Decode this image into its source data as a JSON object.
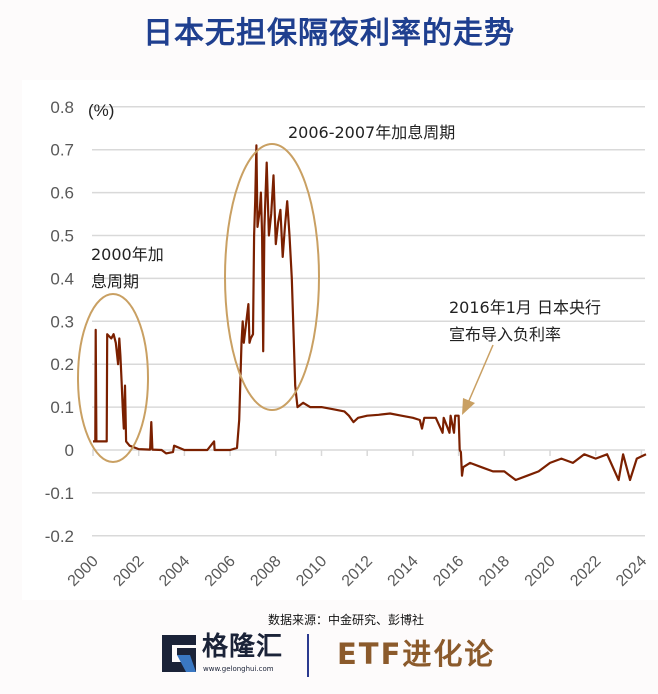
{
  "title": "日本无担保隔夜利率的走势",
  "source": "数据来源：中金研究、彭博社",
  "brand": {
    "name": "格隆汇",
    "url": "www.gelonghui.com",
    "partner": "ETF进化论",
    "partner_color": "#8b5a2b",
    "logo_colors": [
      "#1b2338",
      "#3a78c3"
    ]
  },
  "chart_data": {
    "type": "line",
    "title": "日本无担保隔夜利率的走势",
    "ylabel": "(%)",
    "ylim": [
      -0.2,
      0.8
    ],
    "yticks": [
      "0.8",
      "0.7",
      "0.6",
      "0.5",
      "0.4",
      "0.3",
      "0.2",
      "0.1",
      "0",
      "-0.1",
      "-0.2"
    ],
    "xlim": [
      2000,
      2024.2
    ],
    "xticks": [
      "2000",
      "2002",
      "2004",
      "2006",
      "2008",
      "2010",
      "2012",
      "2014",
      "2016",
      "2018",
      "2020",
      "2022",
      "2024"
    ],
    "grid": true,
    "line_color": "#7b2000",
    "annotation_color": "#c9a063",
    "annotations": [
      {
        "text_lines": [
          "2000年加",
          "息周期"
        ]
      },
      {
        "text_lines": [
          "2006-2007年加息周期"
        ]
      },
      {
        "text_lines": [
          "2016年1月 日本央行",
          "宣布导入负利率"
        ]
      }
    ],
    "series": [
      {
        "x": [
          2000.0,
          2000.1,
          2000.12,
          2000.15,
          2000.18,
          2000.6,
          2000.62,
          2000.8,
          2000.9,
          2001.0,
          2001.1,
          2001.15,
          2001.2,
          2001.25,
          2001.3,
          2001.35,
          2001.4,
          2001.45,
          2001.6,
          2002.0,
          2002.5,
          2002.55,
          2002.6,
          2003.0,
          2003.2,
          2003.5,
          2003.55,
          2004.0,
          2004.5,
          2005.0,
          2005.3,
          2005.32,
          2006.0,
          2006.3,
          2006.4,
          2006.5,
          2006.55,
          2006.6,
          2006.8,
          2006.85,
          2006.9,
          2007.0,
          2007.05,
          2007.1,
          2007.15,
          2007.2,
          2007.3,
          2007.35,
          2007.4,
          2007.45,
          2007.5,
          2007.6,
          2007.7,
          2007.8,
          2007.9,
          2008.0,
          2008.1,
          2008.2,
          2008.3,
          2008.4,
          2008.5,
          2008.6,
          2008.7,
          2008.75,
          2008.85,
          2008.95,
          2009.2,
          2009.5,
          2010.0,
          2010.5,
          2011.0,
          2011.2,
          2011.4,
          2011.6,
          2012.0,
          2012.5,
          2013.0,
          2013.5,
          2014.0,
          2014.3,
          2014.4,
          2014.5,
          2015.0,
          2015.3,
          2015.35,
          2015.6,
          2015.65,
          2015.8,
          2015.85,
          2016.0,
          2016.05,
          2016.1,
          2016.15,
          2016.2,
          2016.5,
          2017.0,
          2017.5,
          2018.0,
          2018.5,
          2019.0,
          2019.5,
          2020.0,
          2020.5,
          2021.0,
          2021.5,
          2022.0,
          2022.5,
          2023.0,
          2023.2,
          2023.5,
          2023.8,
          2024.2
        ],
        "y": [
          0.02,
          0.02,
          0.28,
          0.02,
          0.02,
          0.02,
          0.27,
          0.26,
          0.27,
          0.25,
          0.2,
          0.26,
          0.22,
          0.16,
          0.1,
          0.05,
          0.15,
          0.02,
          0.01,
          0.002,
          0.001,
          0.065,
          0.001,
          0.0,
          -0.008,
          -0.005,
          0.01,
          0.0,
          0.0,
          0.0,
          0.02,
          0.0,
          0.0,
          0.005,
          0.07,
          0.25,
          0.3,
          0.25,
          0.34,
          0.25,
          0.26,
          0.27,
          0.5,
          0.58,
          0.71,
          0.52,
          0.56,
          0.6,
          0.5,
          0.23,
          0.52,
          0.67,
          0.5,
          0.55,
          0.64,
          0.48,
          0.53,
          0.56,
          0.45,
          0.52,
          0.58,
          0.5,
          0.4,
          0.32,
          0.15,
          0.1,
          0.11,
          0.1,
          0.1,
          0.095,
          0.09,
          0.08,
          0.065,
          0.075,
          0.08,
          0.082,
          0.085,
          0.08,
          0.075,
          0.07,
          0.05,
          0.075,
          0.075,
          0.04,
          0.075,
          0.04,
          0.08,
          0.04,
          0.08,
          0.08,
          0.0,
          -0.005,
          -0.06,
          -0.04,
          -0.03,
          -0.04,
          -0.05,
          -0.05,
          -0.07,
          -0.06,
          -0.05,
          -0.03,
          -0.02,
          -0.03,
          -0.01,
          -0.02,
          -0.01,
          -0.07,
          -0.01,
          -0.07,
          -0.02,
          -0.01
        ]
      }
    ]
  }
}
